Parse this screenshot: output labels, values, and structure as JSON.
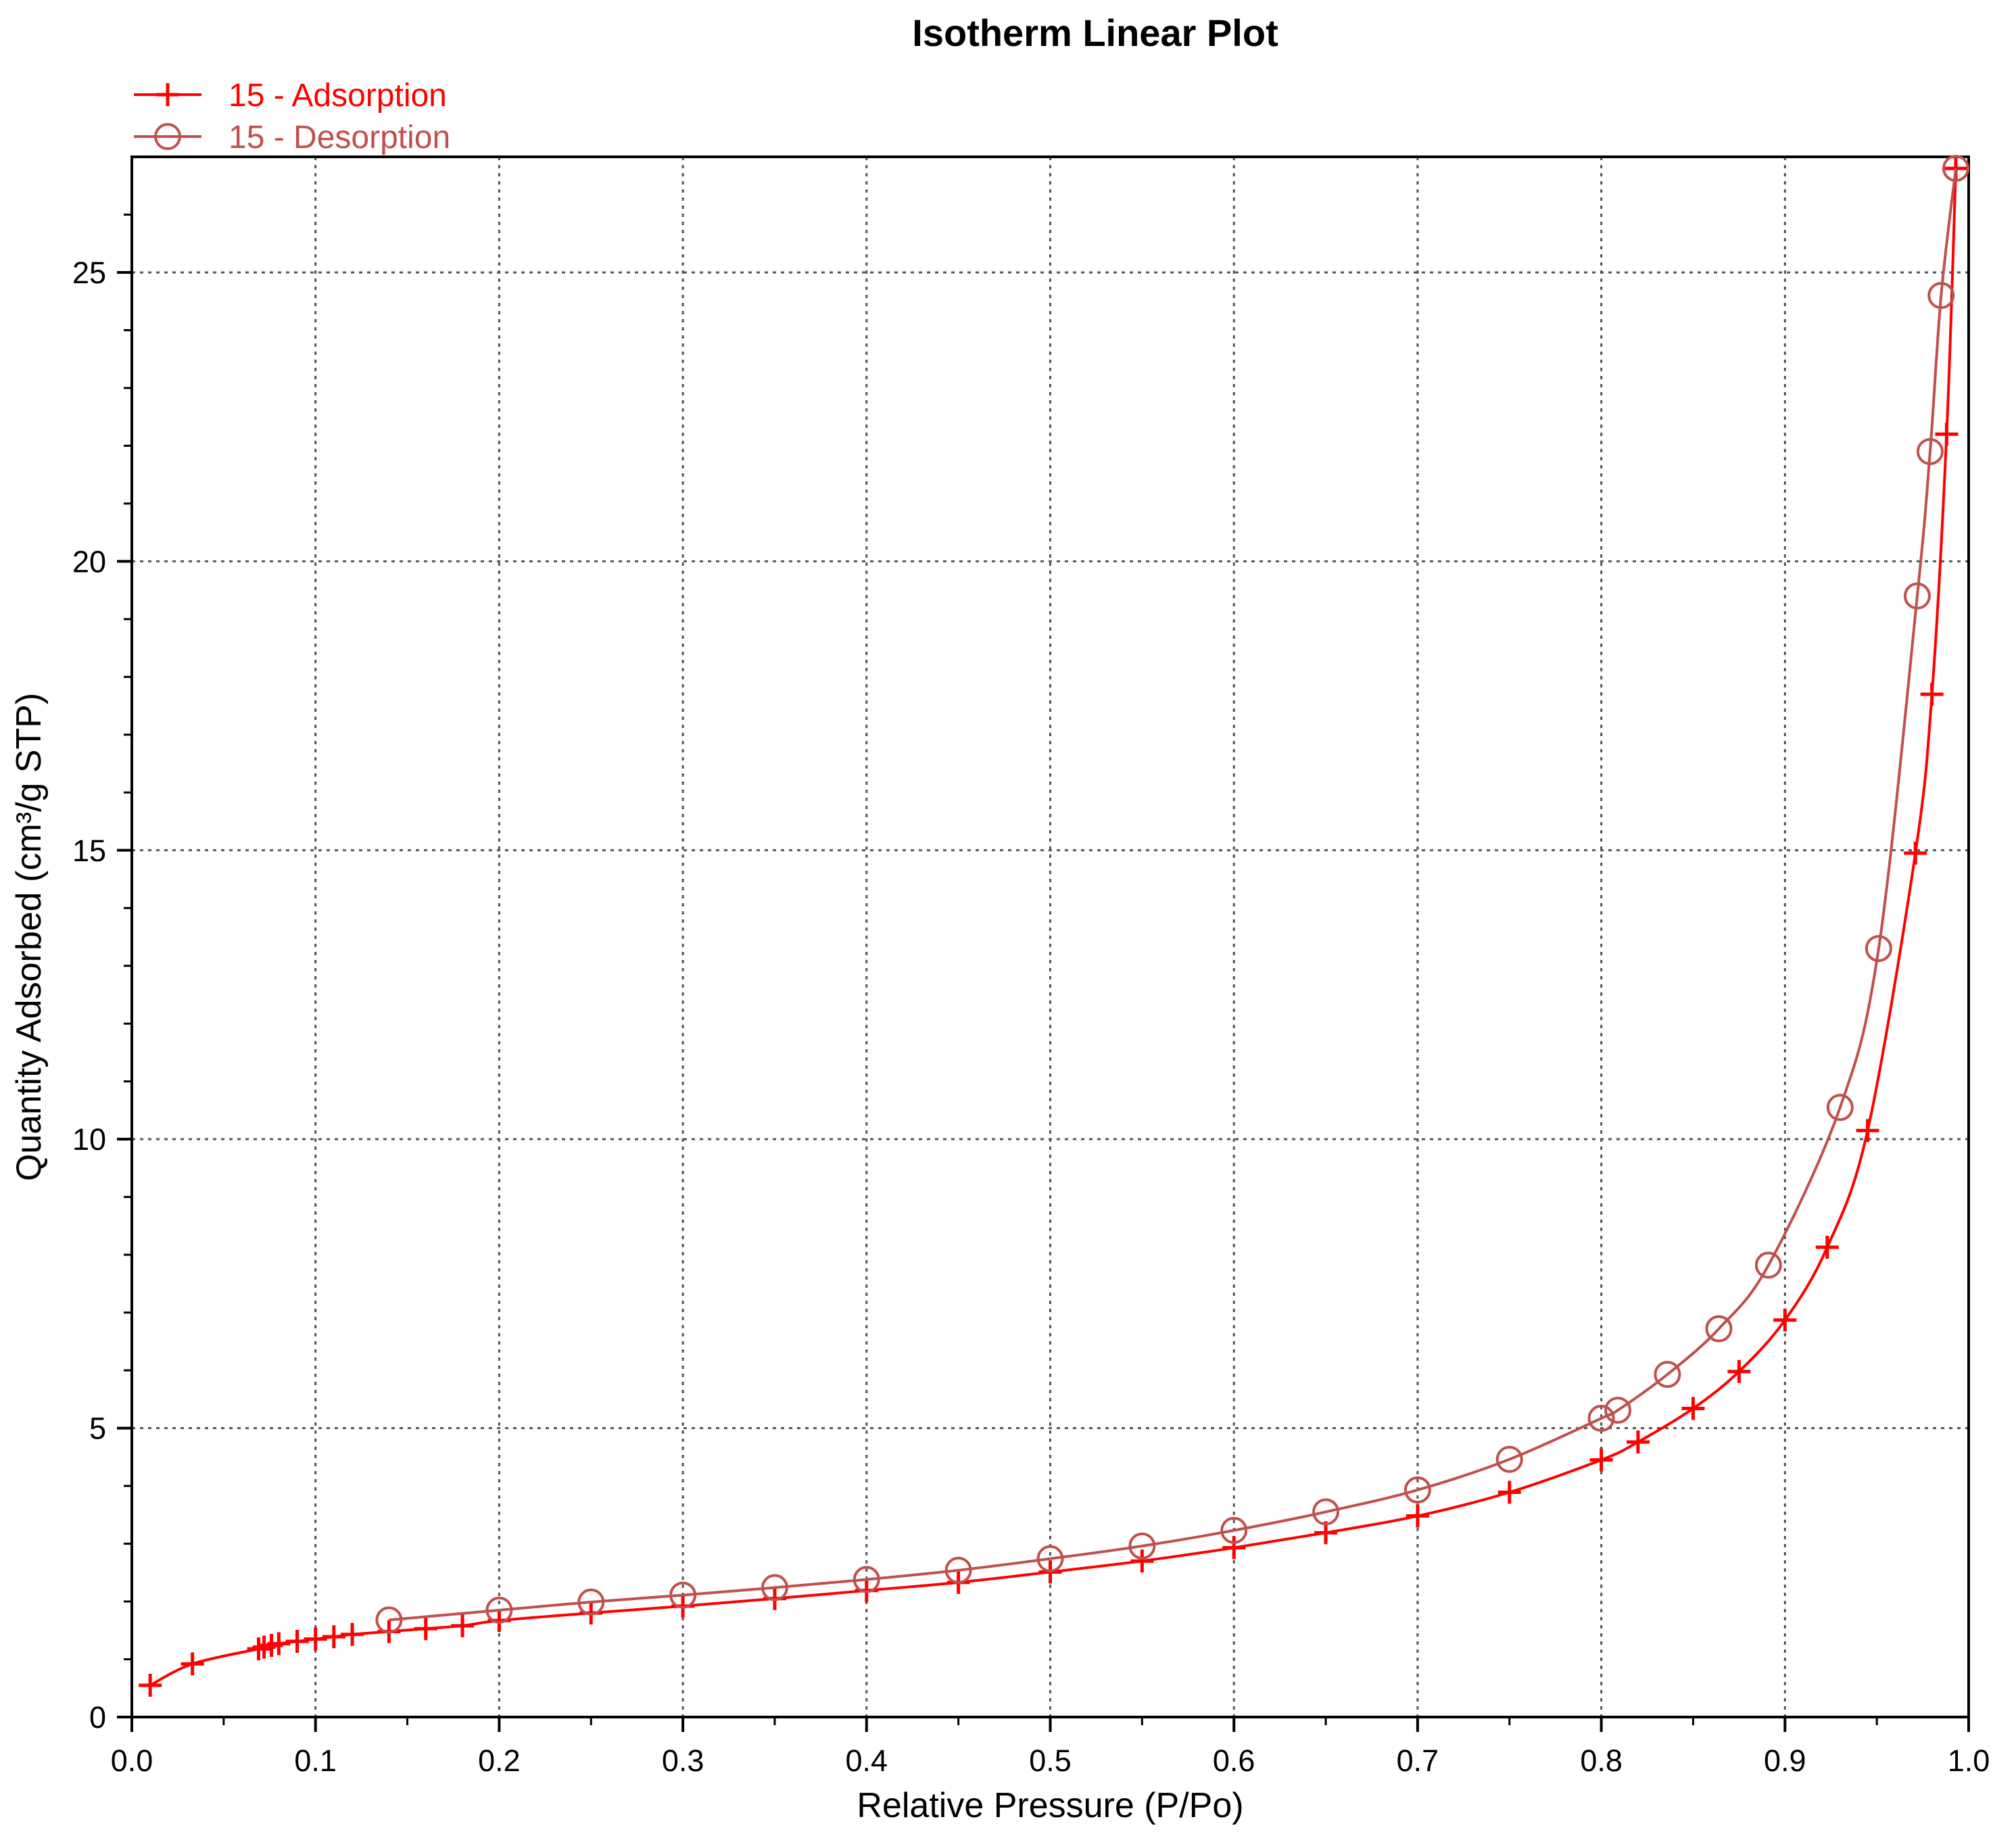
{
  "chart_data": {
    "type": "line",
    "title": "Isotherm Linear Plot",
    "xlabel": "Relative Pressure (P/Po)",
    "ylabel": "Quantity Adsorbed (cm³/g STP)",
    "xlim": [
      0.0,
      1.0
    ],
    "ylim": [
      0,
      27
    ],
    "xticks": [
      "0.0",
      "0.1",
      "0.2",
      "0.3",
      "0.4",
      "0.5",
      "0.6",
      "0.7",
      "0.8",
      "0.9",
      "1.0"
    ],
    "yticks": [
      "0",
      "5",
      "10",
      "15",
      "20",
      "25"
    ],
    "grid": true,
    "legend_position": "top-left",
    "series": [
      {
        "name": "15 - Adsorption",
        "marker": "plus",
        "color": "#ff0000",
        "x": [
          0.01,
          0.033,
          0.069,
          0.072,
          0.076,
          0.08,
          0.09,
          0.1,
          0.11,
          0.12,
          0.14,
          0.16,
          0.18,
          0.2,
          0.25,
          0.3,
          0.35,
          0.4,
          0.45,
          0.5,
          0.55,
          0.6,
          0.65,
          0.7,
          0.75,
          0.8,
          0.82,
          0.85,
          0.875,
          0.9,
          0.923,
          0.945,
          0.971,
          0.98,
          0.988,
          0.993
        ],
        "y": [
          0.55,
          0.92,
          1.18,
          1.21,
          1.24,
          1.27,
          1.31,
          1.35,
          1.39,
          1.43,
          1.48,
          1.53,
          1.58,
          1.67,
          1.8,
          1.92,
          2.05,
          2.19,
          2.33,
          2.51,
          2.7,
          2.93,
          3.19,
          3.48,
          3.89,
          4.45,
          4.76,
          5.34,
          5.98,
          6.87,
          8.13,
          10.15,
          14.95,
          17.7,
          22.2,
          26.8
        ]
      },
      {
        "name": "15 - Desorption",
        "marker": "circle",
        "color": "#c0504d",
        "x": [
          0.993,
          0.985,
          0.979,
          0.972,
          0.951,
          0.93,
          0.891,
          0.864,
          0.836,
          0.809,
          0.8,
          0.75,
          0.7,
          0.65,
          0.6,
          0.55,
          0.5,
          0.45,
          0.4,
          0.35,
          0.3,
          0.25,
          0.2,
          0.14
        ],
        "y": [
          26.8,
          24.6,
          21.9,
          19.4,
          13.3,
          10.55,
          7.82,
          6.72,
          5.93,
          5.31,
          5.17,
          4.46,
          3.93,
          3.55,
          3.23,
          2.96,
          2.74,
          2.54,
          2.38,
          2.24,
          2.11,
          1.99,
          1.85,
          1.68
        ]
      }
    ]
  }
}
